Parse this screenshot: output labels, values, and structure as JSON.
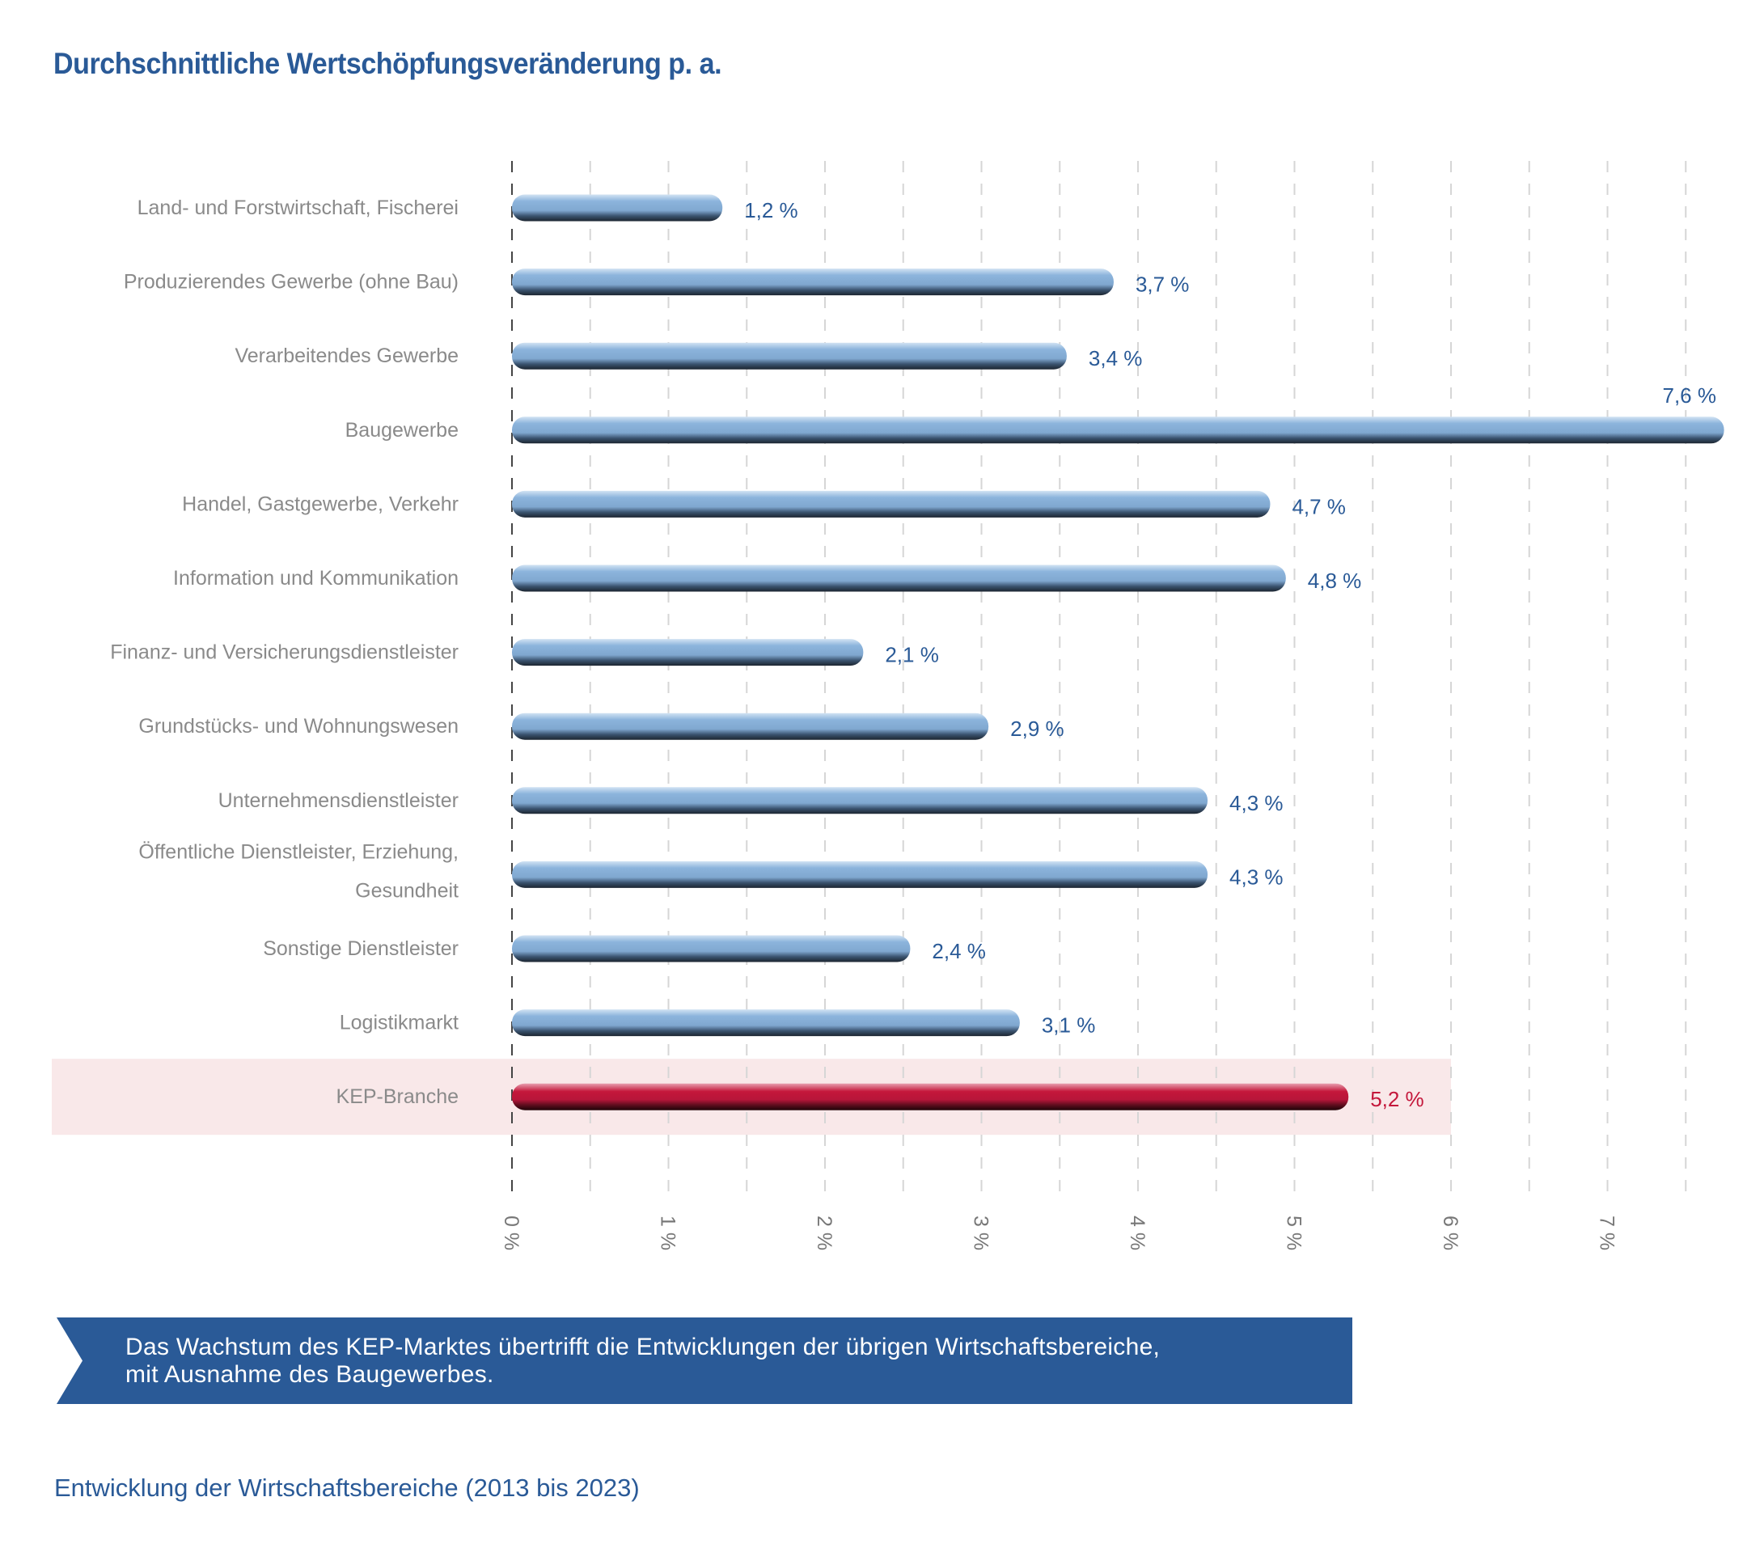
{
  "title": "Durchschnittliche Wertschöpfungsveränderung p. a.",
  "chart_data": {
    "type": "bar",
    "orientation": "horizontal",
    "title": "Durchschnittliche Wertschöpfungsveränderung p. a.",
    "categories": [
      "Land- und Forstwirtschaft, Fischerei",
      "Produzierendes Gewerbe (ohne Bau)",
      "Verarbeitendes Gewerbe",
      "Baugewerbe",
      "Handel, Gastgewerbe, Verkehr",
      "Information und Kommunikation",
      "Finanz- und Versicherungsdienstleister",
      "Grundstücks- und Wohnungswesen",
      "Unternehmensdienstleister",
      "Öffentliche Dienstleister, Erziehung, Gesundheit",
      "Sonstige Dienstleister",
      "Logistikmarkt",
      "KEP-Branche"
    ],
    "category_lines": [
      [
        "Land- und Forstwirtschaft, Fischerei"
      ],
      [
        "Produzierendes Gewerbe (ohne Bau)"
      ],
      [
        "Verarbeitendes Gewerbe"
      ],
      [
        "Baugewerbe"
      ],
      [
        "Handel, Gastgewerbe, Verkehr"
      ],
      [
        "Information und Kommunikation"
      ],
      [
        "Finanz- und Versicherungsdienstleister"
      ],
      [
        "Grundstücks- und Wohnungswesen"
      ],
      [
        "Unternehmensdienstleister"
      ],
      [
        "Öffentliche Dienstleister, Erziehung,",
        "Gesundheit"
      ],
      [
        "Sonstige Dienstleister"
      ],
      [
        "Logistikmarkt"
      ],
      [
        "KEP-Branche"
      ]
    ],
    "values": [
      1.2,
      3.7,
      3.4,
      7.6,
      4.7,
      4.8,
      2.1,
      2.9,
      4.3,
      4.3,
      2.4,
      3.1,
      5.2
    ],
    "value_labels": [
      "1,2 %",
      "3,7 %",
      "3,4 %",
      "7,6 %",
      "4,7 %",
      "4,8 %",
      "2,1 %",
      "2,9 %",
      "4,3 %",
      "4,3 %",
      "2,4 %",
      "3,1 %",
      "5,2 %"
    ],
    "highlight_index": 12,
    "xlim": [
      0,
      7.6
    ],
    "xticks": [
      0,
      1,
      2,
      3,
      4,
      5,
      6,
      7
    ],
    "xtick_labels": [
      "0 %",
      "1 %",
      "2 %",
      "3 %",
      "4 %",
      "5 %",
      "6 %",
      "7 %"
    ],
    "grid": "vertical dashed, every 0.5",
    "colors": {
      "bar": "#8cb4dc",
      "highlight_bar": "#c4173b",
      "highlight_band": "#f9e8e9",
      "value_text": "#2a5a97",
      "highlight_text": "#c4173b"
    }
  },
  "callout": {
    "lines": [
      "Das Wachstum des KEP-Marktes übertrifft die Entwicklungen der übrigen Wirtschaftsbereiche,",
      "mit Ausnahme des Baugewerbes."
    ]
  },
  "footer": "Entwicklung der Wirtschaftsbereiche (2013 bis 2023)"
}
